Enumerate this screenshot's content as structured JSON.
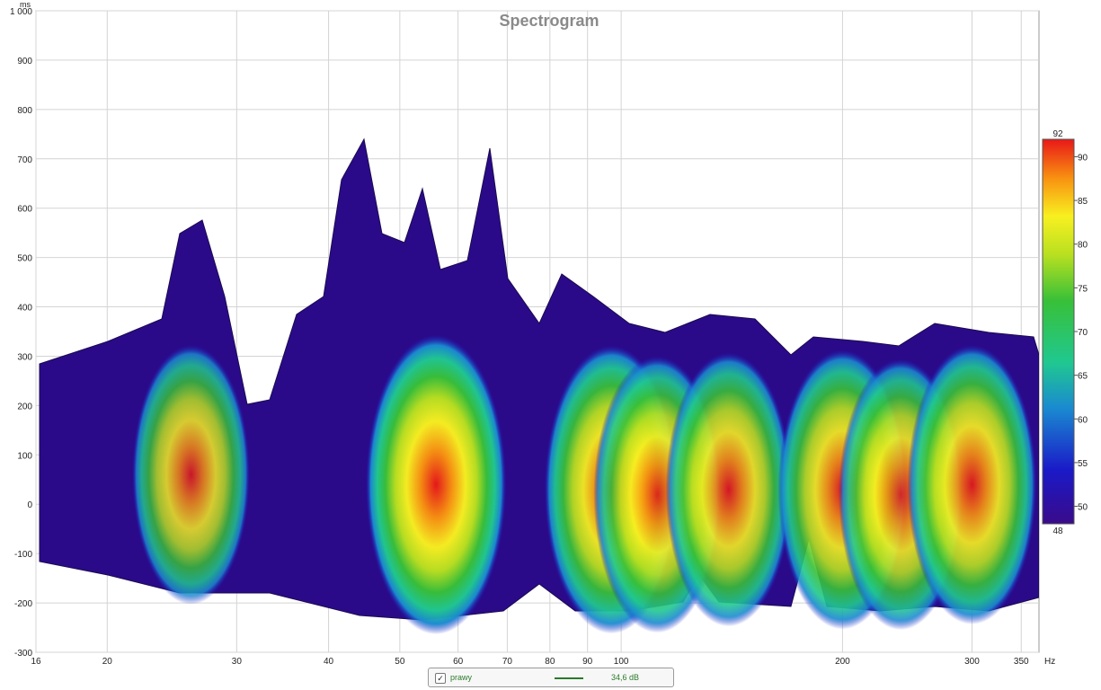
{
  "chart_data": {
    "type": "heatmap",
    "title": "Spectrogram",
    "x_unit": "Hz",
    "y_unit": "ms",
    "x_scale": "log",
    "xlim": [
      16,
      370
    ],
    "ylim": [
      -300,
      1000
    ],
    "x_ticks": [
      {
        "value": 16,
        "label": "16"
      },
      {
        "value": 20,
        "label": "20"
      },
      {
        "value": 30,
        "label": "30"
      },
      {
        "value": 40,
        "label": "40"
      },
      {
        "value": 50,
        "label": "50"
      },
      {
        "value": 60,
        "label": "60"
      },
      {
        "value": 70,
        "label": "70"
      },
      {
        "value": 80,
        "label": "80"
      },
      {
        "value": 90,
        "label": "90"
      },
      {
        "value": 100,
        "label": "100"
      },
      {
        "value": 200,
        "label": "200"
      },
      {
        "value": 300,
        "label": "300"
      },
      {
        "value": 350,
        "label": "350"
      }
    ],
    "y_ticks": [
      {
        "value": 1000,
        "label": "1 000"
      },
      {
        "value": 900,
        "label": "900"
      },
      {
        "value": 800,
        "label": "800"
      },
      {
        "value": 700,
        "label": "700"
      },
      {
        "value": 600,
        "label": "600"
      },
      {
        "value": 500,
        "label": "500"
      },
      {
        "value": 400,
        "label": "400"
      },
      {
        "value": 300,
        "label": "300"
      },
      {
        "value": 200,
        "label": "200"
      },
      {
        "value": 100,
        "label": "100"
      },
      {
        "value": 0,
        "label": "0"
      },
      {
        "value": -100,
        "label": "-100"
      },
      {
        "value": -200,
        "label": "-200"
      },
      {
        "value": -300,
        "label": "-300"
      }
    ],
    "grid": true,
    "colorbar": {
      "min": 48,
      "max": 92,
      "min_label": "48",
      "max_label": "92",
      "ticks": [
        {
          "value": 50,
          "label": "50"
        },
        {
          "value": 55,
          "label": "55"
        },
        {
          "value": 60,
          "label": "60"
        },
        {
          "value": 65,
          "label": "65"
        },
        {
          "value": 70,
          "label": "70"
        },
        {
          "value": 75,
          "label": "75"
        },
        {
          "value": 80,
          "label": "80"
        },
        {
          "value": 85,
          "label": "85"
        },
        {
          "value": 90,
          "label": "90"
        }
      ],
      "colors": [
        "#3a0a8a",
        "#1a1ac8",
        "#1a8ad0",
        "#20c890",
        "#38c038",
        "#b8e020",
        "#f8f020",
        "#f89010",
        "#e81818"
      ]
    },
    "peaks": [
      {
        "freq": 26,
        "time": 60,
        "level": 76
      },
      {
        "freq": 56,
        "time": 40,
        "level": 90
      },
      {
        "freq": 97,
        "time": 30,
        "level": 86
      },
      {
        "freq": 112,
        "time": 20,
        "level": 82
      },
      {
        "freq": 140,
        "time": 30,
        "level": 81
      },
      {
        "freq": 200,
        "time": 30,
        "level": 83
      },
      {
        "freq": 240,
        "time": 20,
        "level": 80
      },
      {
        "freq": 300,
        "time": 40,
        "level": 83
      }
    ],
    "legend": [
      {
        "name": "prawy",
        "checked": true,
        "value": "34,6 dB",
        "color": "#2a7a2a"
      }
    ],
    "legend_position": "bottom-center"
  }
}
